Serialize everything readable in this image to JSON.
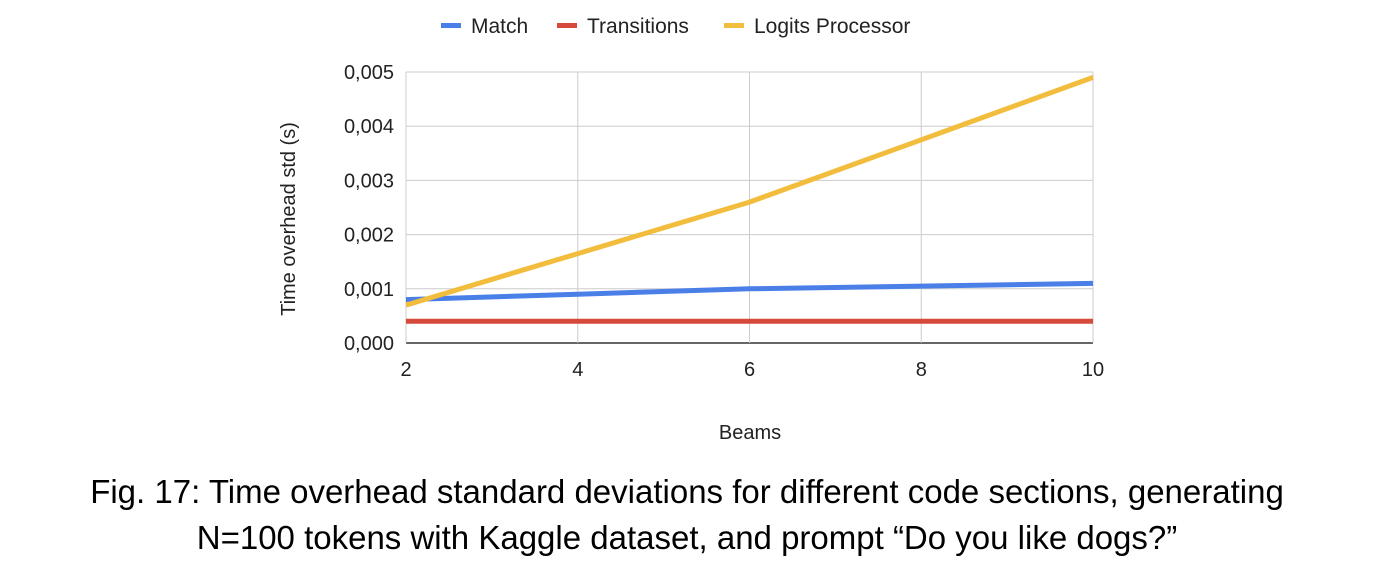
{
  "chart_data": {
    "type": "line",
    "x": [
      2,
      4,
      6,
      8,
      10
    ],
    "series": [
      {
        "name": "Match",
        "color": "#4a7fe8",
        "values": [
          0.0008,
          0.0009,
          0.001,
          0.00105,
          0.0011
        ]
      },
      {
        "name": "Transitions",
        "color": "#d64a3b",
        "values": [
          0.0004,
          0.0004,
          0.0004,
          0.0004,
          0.0004
        ]
      },
      {
        "name": "Logits Processor",
        "color": "#f2bd3c",
        "values": [
          0.0007,
          0.00165,
          0.0026,
          0.00375,
          0.0049
        ]
      }
    ],
    "xlabel": "Beams",
    "ylabel": "Time overhead std (s)",
    "xlim": [
      2,
      10
    ],
    "ylim": [
      0,
      0.005
    ],
    "x_ticks": [
      2,
      4,
      6,
      8,
      10
    ],
    "x_tick_labels": [
      "2",
      "4",
      "6",
      "8",
      "10"
    ],
    "y_ticks": [
      0,
      0.001,
      0.002,
      0.003,
      0.004,
      0.005
    ],
    "y_tick_labels": [
      "0,000",
      "0,001",
      "0,002",
      "0,003",
      "0,004",
      "0,005"
    ],
    "grid": true,
    "legend_position": "top-center"
  },
  "caption": {
    "line1": "Fig. 17: Time overhead standard deviations for different code sections, generating",
    "line2": "N=100 tokens with Kaggle dataset, and prompt “Do you like dogs?”"
  }
}
